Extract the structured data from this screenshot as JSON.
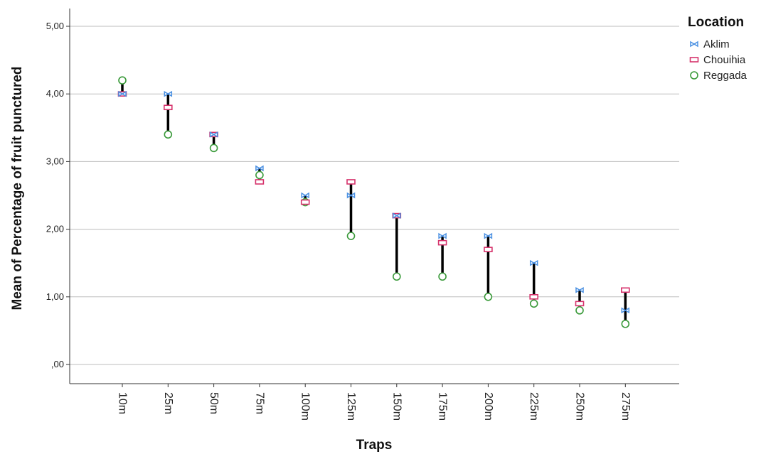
{
  "chart_data": {
    "type": "scatter",
    "title": "",
    "xlabel": "Traps",
    "ylabel": "Mean of Percentage of fruit punctured",
    "categories": [
      "10m",
      "25m",
      "50m",
      "75m",
      "100m",
      "125m",
      "150m",
      "175m",
      "200m",
      "225m",
      "250m",
      "275m"
    ],
    "ylim": [
      0,
      5
    ],
    "yticks": [
      0,
      1,
      2,
      3,
      4,
      5
    ],
    "ytick_labels": [
      ",00",
      "1,00",
      "2,00",
      "3,00",
      "4,00",
      "5,00"
    ],
    "grid": true,
    "drop_lines": true,
    "legend_title": "Location",
    "legend_position": "top-right",
    "series": [
      {
        "name": "Aklim",
        "marker": "bowtie",
        "color": "#4a90e2",
        "values": [
          4.0,
          4.0,
          3.4,
          2.9,
          2.5,
          2.5,
          2.2,
          1.9,
          1.9,
          1.5,
          1.1,
          0.8
        ]
      },
      {
        "name": "Chouihia",
        "marker": "rectangle",
        "color": "#d6336c",
        "values": [
          4.0,
          3.8,
          3.4,
          2.7,
          2.4,
          2.7,
          2.2,
          1.8,
          1.7,
          1.0,
          0.9,
          1.1
        ]
      },
      {
        "name": "Reggada",
        "marker": "circle",
        "color": "#3a9a3a",
        "values": [
          4.2,
          3.4,
          3.2,
          2.8,
          2.4,
          1.9,
          1.3,
          1.3,
          1.0,
          0.9,
          0.8,
          0.6
        ]
      }
    ]
  }
}
